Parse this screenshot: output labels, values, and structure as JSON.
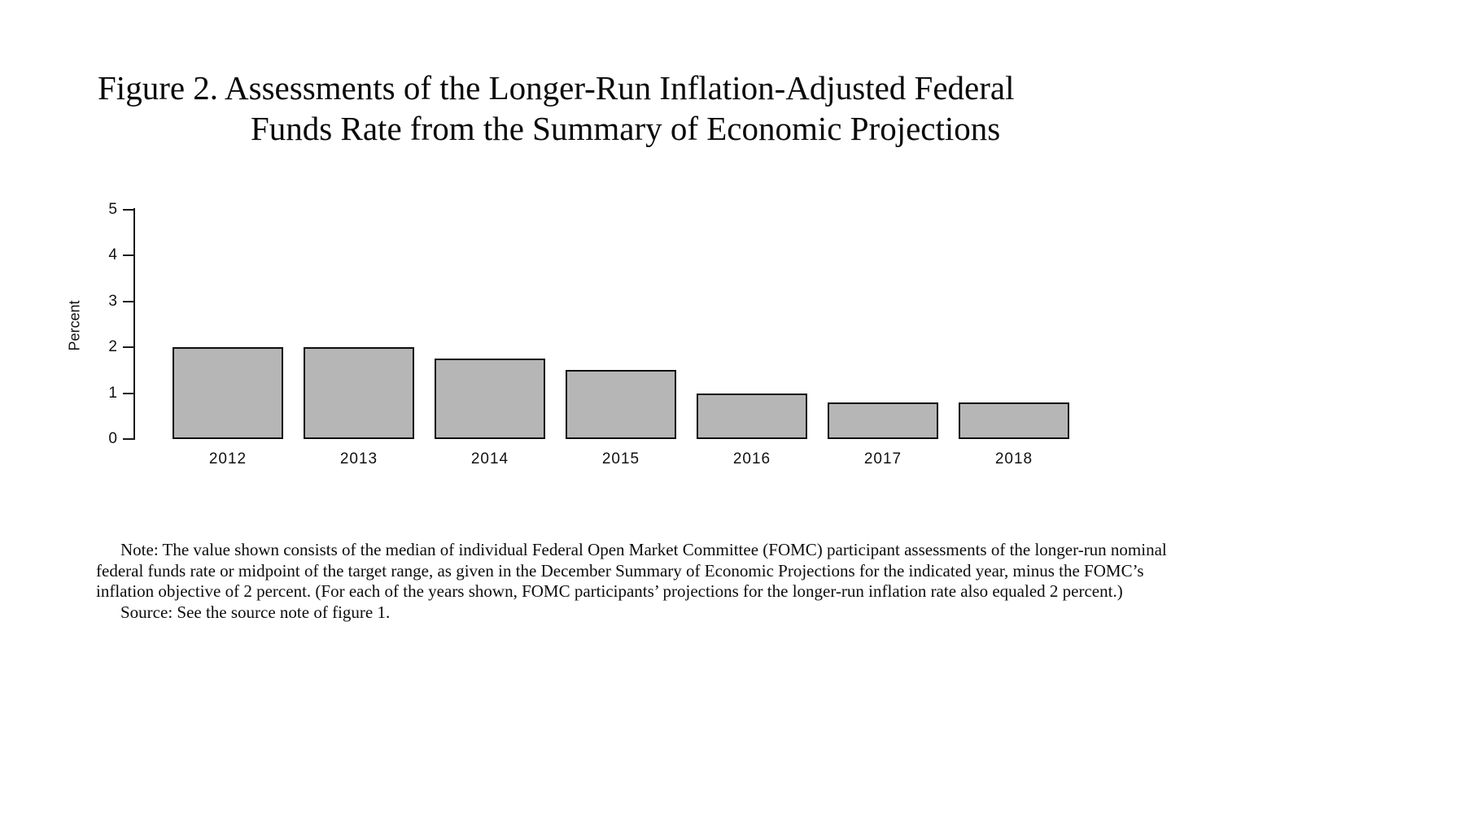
{
  "page": {
    "title_line1": "Figure 2.  Assessments of the Longer-Run Inflation-Adjusted Federal",
    "title_line2": "Funds Rate from the Summary of Economic Projections",
    "note": "Note: The value shown consists of the median of individual Federal Open Market Committee (FOMC) participant assessments of the longer-run nominal federal funds rate or midpoint of the target range, as given in the December Summary of Economic Projections for the indicated year, minus the FOMC’s inflation objective of 2 percent.  (For each of the years shown, FOMC participants’ projections for the longer-run inflation rate also equaled 2 percent.)",
    "source": "Source:  See the source note of figure 1."
  },
  "chart_data": {
    "type": "bar",
    "title": "Figure 2. Assessments of the Longer-Run Inflation-Adjusted Federal Funds Rate from the Summary of Economic Projections",
    "categories": [
      "2012",
      "2013",
      "2014",
      "2015",
      "2016",
      "2017",
      "2018"
    ],
    "values": [
      2.0,
      2.0,
      1.75,
      1.5,
      1.0,
      0.8,
      0.8
    ],
    "xlabel": "",
    "ylabel": "Percent",
    "ylim": [
      0,
      5
    ],
    "yticks": [
      0,
      1,
      2,
      3,
      4,
      5
    ],
    "grid": false,
    "legend": false,
    "bar_fill": "#b6b6b6",
    "bar_border": "#0d0d0d"
  }
}
